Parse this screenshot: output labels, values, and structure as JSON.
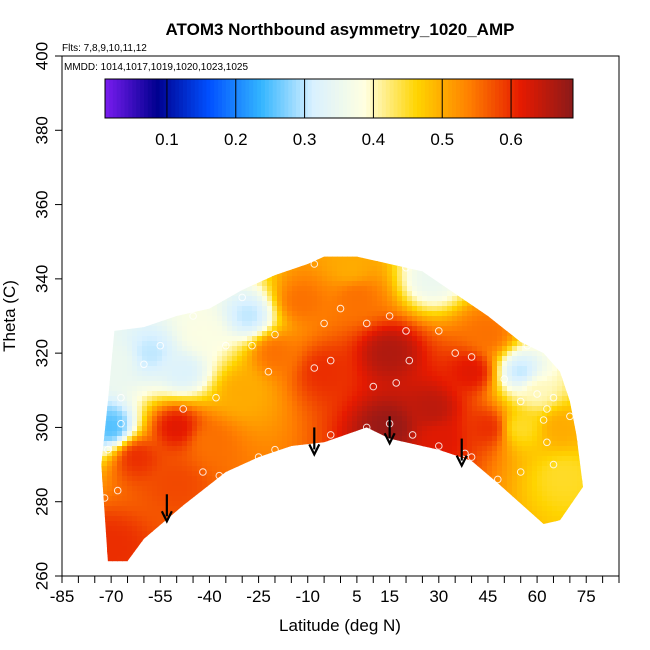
{
  "chart_data": {
    "type": "heatmap",
    "title": "ATOM3 Northbound asymmetry_1020_AMP",
    "annotations": [
      "Flts: 7,8,9,10,11,12",
      "MMDD: 1014,1017,1019,1020,1023,1025"
    ],
    "xlabel": "Latitude (deg N)",
    "ylabel": "Theta (C)",
    "xlim": [
      -85,
      85
    ],
    "ylim": [
      260,
      400
    ],
    "x_tick_labels": [
      "-85",
      "-70",
      "-55",
      "-40",
      "-25",
      "-10",
      "5",
      "15",
      "30",
      "45",
      "60",
      "75"
    ],
    "x_ticks": [
      -85,
      -70,
      -55,
      -40,
      -25,
      -10,
      5,
      15,
      30,
      45,
      60,
      75
    ],
    "x_minor_ticks": [
      -80,
      -75,
      -65,
      -60,
      -50,
      -45,
      -35,
      -30,
      -20,
      -15,
      -5,
      0,
      10,
      20,
      25,
      35,
      40,
      50,
      55,
      65,
      70,
      80,
      85
    ],
    "y_ticks": [
      260,
      280,
      300,
      320,
      340,
      360,
      380,
      400
    ],
    "y_tick_labels": [
      "260",
      "280",
      "300",
      "320",
      "340",
      "360",
      "380",
      "400"
    ],
    "colorbar": {
      "range": [
        0.01,
        0.69
      ],
      "ticks": [
        0.1,
        0.2,
        0.3,
        0.4,
        0.5,
        0.6
      ],
      "tick_labels": [
        "0.1",
        "0.2",
        "0.3",
        "0.4",
        "0.5",
        "0.6"
      ],
      "colors": [
        "#7a1cf0",
        "#00008f",
        "#0050ff",
        "#33b5ff",
        "#d9f1ff",
        "#ffffe0",
        "#ffd400",
        "#ff8000",
        "#e61a00",
        "#8b1a1a"
      ]
    },
    "domain": {
      "top": [
        [
          -73,
          290
        ],
        [
          -71,
          307
        ],
        [
          -69,
          326
        ],
        [
          -60,
          327
        ],
        [
          -50,
          330
        ],
        [
          -40,
          332
        ],
        [
          -30,
          337
        ],
        [
          -20,
          341
        ],
        [
          -10,
          344
        ],
        [
          -5,
          346
        ],
        [
          5,
          346
        ],
        [
          15,
          344
        ],
        [
          25,
          342
        ],
        [
          35,
          336
        ],
        [
          45,
          330
        ],
        [
          55,
          323
        ],
        [
          62,
          320
        ],
        [
          67,
          315
        ],
        [
          70,
          307
        ],
        [
          72,
          298
        ],
        [
          74,
          284
        ]
      ],
      "bottom": [
        [
          74,
          284
        ],
        [
          67,
          275
        ],
        [
          62,
          274
        ],
        [
          48,
          285
        ],
        [
          40,
          291
        ],
        [
          30,
          294
        ],
        [
          15,
          297
        ],
        [
          8,
          300
        ],
        [
          -5,
          296
        ],
        [
          -15,
          295
        ],
        [
          -25,
          292
        ],
        [
          -35,
          288
        ],
        [
          -48,
          279
        ],
        [
          -60,
          270
        ],
        [
          -65,
          264
        ],
        [
          -71,
          264
        ],
        [
          -73,
          290
        ]
      ]
    },
    "value_anchors": [
      {
        "lat": -62,
        "theta": 292,
        "value": 0.6
      },
      {
        "lat": -50,
        "theta": 300,
        "value": 0.62
      },
      {
        "lat": -40,
        "theta": 296,
        "value": 0.55
      },
      {
        "lat": -30,
        "theta": 310,
        "value": 0.5
      },
      {
        "lat": -20,
        "theta": 320,
        "value": 0.55
      },
      {
        "lat": -12,
        "theta": 334,
        "value": 0.55
      },
      {
        "lat": -5,
        "theta": 315,
        "value": 0.6
      },
      {
        "lat": 5,
        "theta": 335,
        "value": 0.55
      },
      {
        "lat": 15,
        "theta": 300,
        "value": 0.68
      },
      {
        "lat": 15,
        "theta": 320,
        "value": 0.66
      },
      {
        "lat": 28,
        "theta": 305,
        "value": 0.65
      },
      {
        "lat": 40,
        "theta": 315,
        "value": 0.62
      },
      {
        "lat": 45,
        "theta": 300,
        "value": 0.6
      },
      {
        "lat": 45,
        "theta": 325,
        "value": 0.55
      },
      {
        "lat": 55,
        "theta": 300,
        "value": 0.45
      },
      {
        "lat": 60,
        "theta": 310,
        "value": 0.4
      },
      {
        "lat": 67,
        "theta": 300,
        "value": 0.5
      },
      {
        "lat": 68,
        "theta": 287,
        "value": 0.45
      },
      {
        "lat": -70,
        "theta": 300,
        "value": 0.25
      },
      {
        "lat": -68,
        "theta": 318,
        "value": 0.35
      },
      {
        "lat": -58,
        "theta": 320,
        "value": 0.3
      },
      {
        "lat": -48,
        "theta": 315,
        "value": 0.32
      },
      {
        "lat": -42,
        "theta": 325,
        "value": 0.38
      },
      {
        "lat": -28,
        "theta": 330,
        "value": 0.3
      },
      {
        "lat": 3,
        "theta": 343,
        "value": 0.5
      },
      {
        "lat": 28,
        "theta": 340,
        "value": 0.35
      },
      {
        "lat": 55,
        "theta": 315,
        "value": 0.3
      },
      {
        "lat": -70,
        "theta": 268,
        "value": 0.6
      },
      {
        "lat": -50,
        "theta": 285,
        "value": 0.58
      },
      {
        "lat": 30,
        "theta": 297,
        "value": 0.62
      }
    ],
    "observation_points": [
      [
        -72,
        281
      ],
      [
        -71,
        294
      ],
      [
        -68,
        283
      ],
      [
        -67,
        301
      ],
      [
        -67,
        308
      ],
      [
        -60,
        317
      ],
      [
        -55,
        322
      ],
      [
        -48,
        305
      ],
      [
        -45,
        330
      ],
      [
        -42,
        288
      ],
      [
        -38,
        308
      ],
      [
        -37,
        287
      ],
      [
        -35,
        322
      ],
      [
        -30,
        335
      ],
      [
        -27,
        322
      ],
      [
        -25,
        292
      ],
      [
        -22,
        315
      ],
      [
        -20,
        325
      ],
      [
        -20,
        294
      ],
      [
        -8,
        344
      ],
      [
        -8,
        316
      ],
      [
        -5,
        328
      ],
      [
        -3,
        318
      ],
      [
        -3,
        298
      ],
      [
        0,
        332
      ],
      [
        8,
        300
      ],
      [
        8,
        328
      ],
      [
        10,
        311
      ],
      [
        15,
        330
      ],
      [
        15,
        301
      ],
      [
        17,
        312
      ],
      [
        20,
        343
      ],
      [
        20,
        326
      ],
      [
        21,
        318
      ],
      [
        22,
        298
      ],
      [
        30,
        326
      ],
      [
        30,
        295
      ],
      [
        35,
        320
      ],
      [
        38,
        293
      ],
      [
        40,
        319
      ],
      [
        40,
        292
      ],
      [
        48,
        286
      ],
      [
        50,
        313
      ],
      [
        55,
        288
      ],
      [
        55,
        307
      ],
      [
        57,
        322
      ],
      [
        60,
        309
      ],
      [
        62,
        302
      ],
      [
        63,
        305
      ],
      [
        63,
        296
      ],
      [
        65,
        308
      ],
      [
        65,
        290
      ],
      [
        67,
        274
      ],
      [
        70,
        303
      ]
    ],
    "arrows": [
      {
        "lat": -53,
        "theta_top": 282,
        "theta_bottom": 275
      },
      {
        "lat": -8,
        "theta_top": 300,
        "theta_bottom": 293
      },
      {
        "lat": 15,
        "theta_top": 303,
        "theta_bottom": 296
      },
      {
        "lat": 37,
        "theta_top": 297,
        "theta_bottom": 290
      }
    ]
  }
}
